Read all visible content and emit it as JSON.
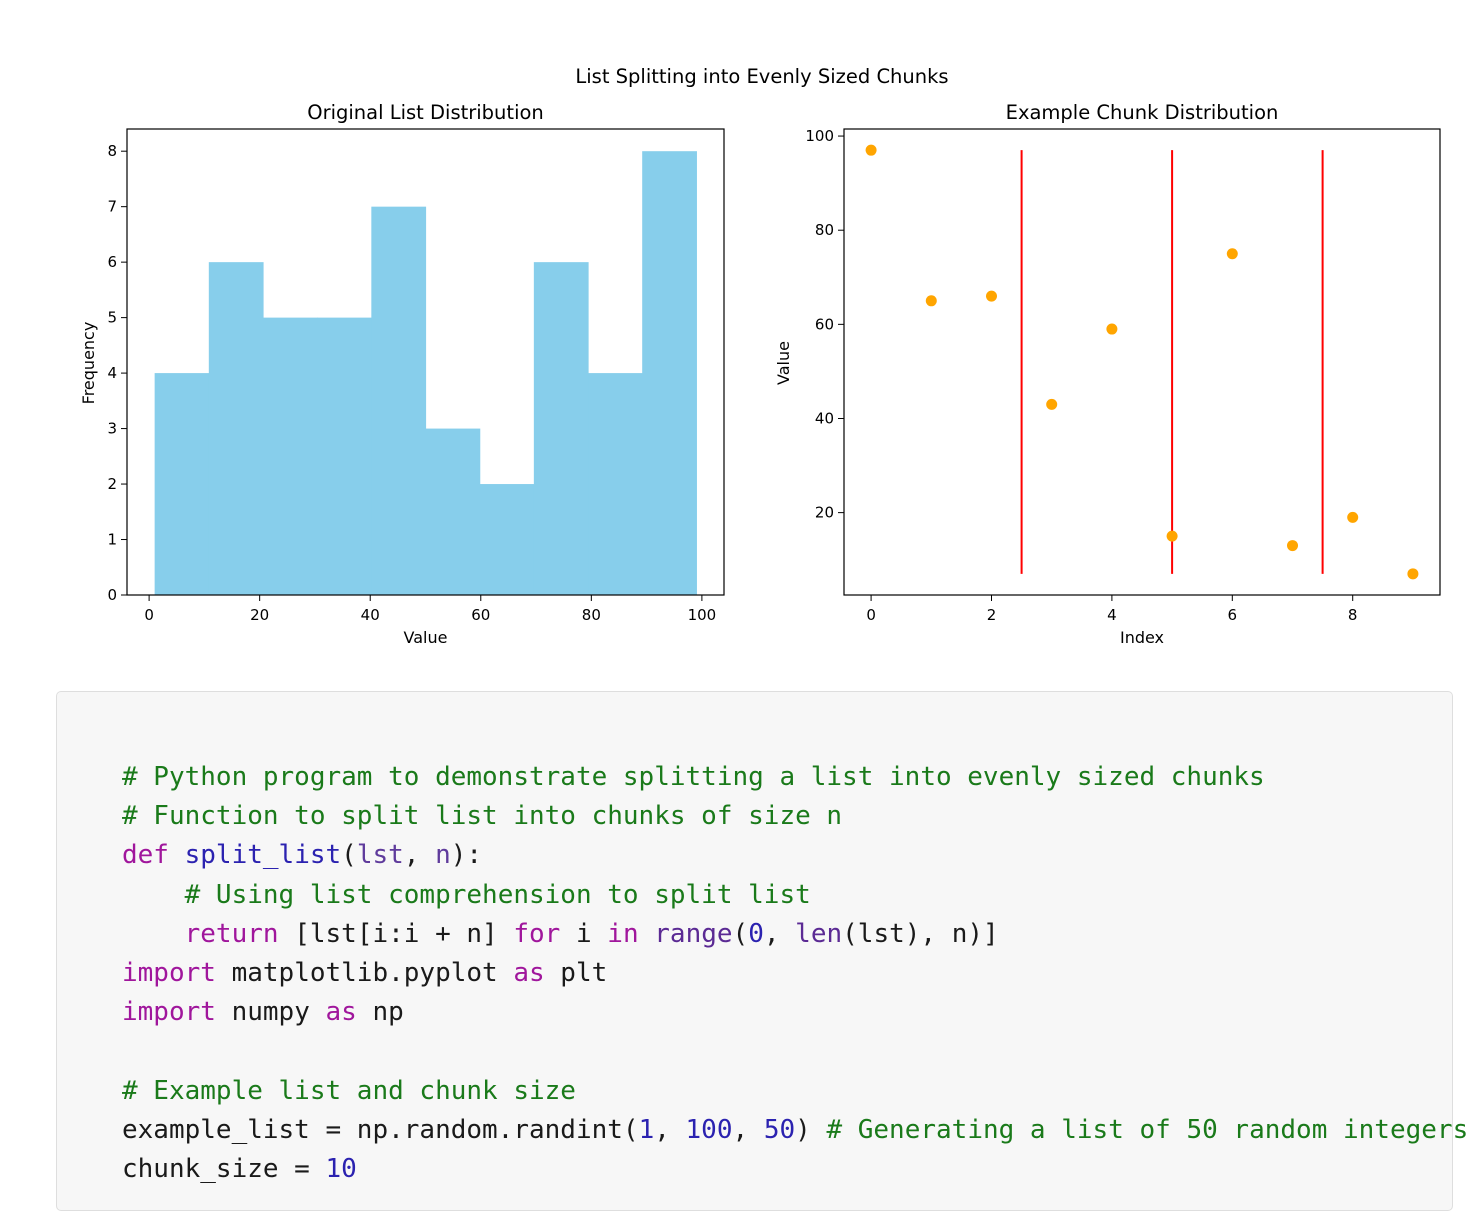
{
  "figure": {
    "suptitle": "List Splitting into Evenly Sized Chunks"
  },
  "colors": {
    "bars": "#87ceeb",
    "points": "#ffa500",
    "lines": "#ff0000"
  },
  "chart_data": [
    {
      "type": "bar",
      "title": "Original List Distribution",
      "xlabel": "Value",
      "ylabel": "Frequency",
      "bin_edges": [
        1,
        10.8,
        20.6,
        30.4,
        40.2,
        50,
        59.8,
        69.6,
        79.4,
        89.2,
        99
      ],
      "values": [
        4,
        6,
        5,
        5,
        7,
        3,
        2,
        6,
        4,
        8
      ],
      "xlim": [
        -4,
        104
      ],
      "ylim": [
        0,
        8.4
      ],
      "xticks": [
        0,
        20,
        40,
        60,
        80,
        100
      ],
      "yticks": [
        0,
        1,
        2,
        3,
        4,
        5,
        6,
        7,
        8
      ],
      "grid": false,
      "legend": "none"
    },
    {
      "type": "scatter",
      "title": "Example Chunk Distribution",
      "xlabel": "Index",
      "ylabel": "Value",
      "x": [
        0,
        1,
        2,
        3,
        4,
        5,
        6,
        7,
        8,
        9
      ],
      "y": [
        97,
        65,
        66,
        43,
        59,
        15,
        75,
        13,
        19,
        7
      ],
      "vlines": {
        "x": [
          2.5,
          5,
          7.5
        ],
        "ymin": 7,
        "ymax": 97
      },
      "xlim": [
        -0.45,
        9.45
      ],
      "ylim": [
        2.5,
        101.5
      ],
      "xticks": [
        0,
        2,
        4,
        6,
        8
      ],
      "yticks": [
        20,
        40,
        60,
        80,
        100
      ],
      "grid": false,
      "legend": "none"
    }
  ],
  "code": {
    "lines": [
      [
        {
          "t": "# Python program to demonstrate splitting a list into evenly sized chunks",
          "c": "comment"
        }
      ],
      [
        {
          "t": "# Function to split list into chunks of size n",
          "c": "comment"
        }
      ],
      [
        {
          "t": "def",
          "c": "keyword"
        },
        {
          "t": " "
        },
        {
          "t": "split_list",
          "c": "def"
        },
        {
          "t": "("
        },
        {
          "t": "lst",
          "c": "param"
        },
        {
          "t": ", "
        },
        {
          "t": "n",
          "c": "param"
        },
        {
          "t": "):"
        }
      ],
      [
        {
          "t": "    "
        },
        {
          "t": "# Using list comprehension to split list",
          "c": "comment"
        }
      ],
      [
        {
          "t": "    "
        },
        {
          "t": "return",
          "c": "keyword"
        },
        {
          "t": " [lst[i:i + n] "
        },
        {
          "t": "for",
          "c": "keyword"
        },
        {
          "t": " i "
        },
        {
          "t": "in",
          "c": "keyword"
        },
        {
          "t": " "
        },
        {
          "t": "range",
          "c": "builtin"
        },
        {
          "t": "("
        },
        {
          "t": "0",
          "c": "number"
        },
        {
          "t": ", "
        },
        {
          "t": "len",
          "c": "builtin"
        },
        {
          "t": "(lst), n)]"
        }
      ],
      [
        {
          "t": "import",
          "c": "keyword"
        },
        {
          "t": " matplotlib.pyplot "
        },
        {
          "t": "as",
          "c": "keyword"
        },
        {
          "t": " plt"
        }
      ],
      [
        {
          "t": "import",
          "c": "keyword"
        },
        {
          "t": " numpy "
        },
        {
          "t": "as",
          "c": "keyword"
        },
        {
          "t": " np"
        }
      ],
      [
        {
          "t": ""
        }
      ],
      [
        {
          "t": "# Example list and chunk size",
          "c": "comment"
        }
      ],
      [
        {
          "t": "example_list = np.random.randint("
        },
        {
          "t": "1",
          "c": "number"
        },
        {
          "t": ", "
        },
        {
          "t": "100",
          "c": "number"
        },
        {
          "t": ", "
        },
        {
          "t": "50",
          "c": "number"
        },
        {
          "t": ") "
        },
        {
          "t": "# Generating a list of 50 random integers",
          "c": "comment"
        }
      ],
      [
        {
          "t": "chunk_size = "
        },
        {
          "t": "10",
          "c": "number"
        }
      ]
    ]
  }
}
